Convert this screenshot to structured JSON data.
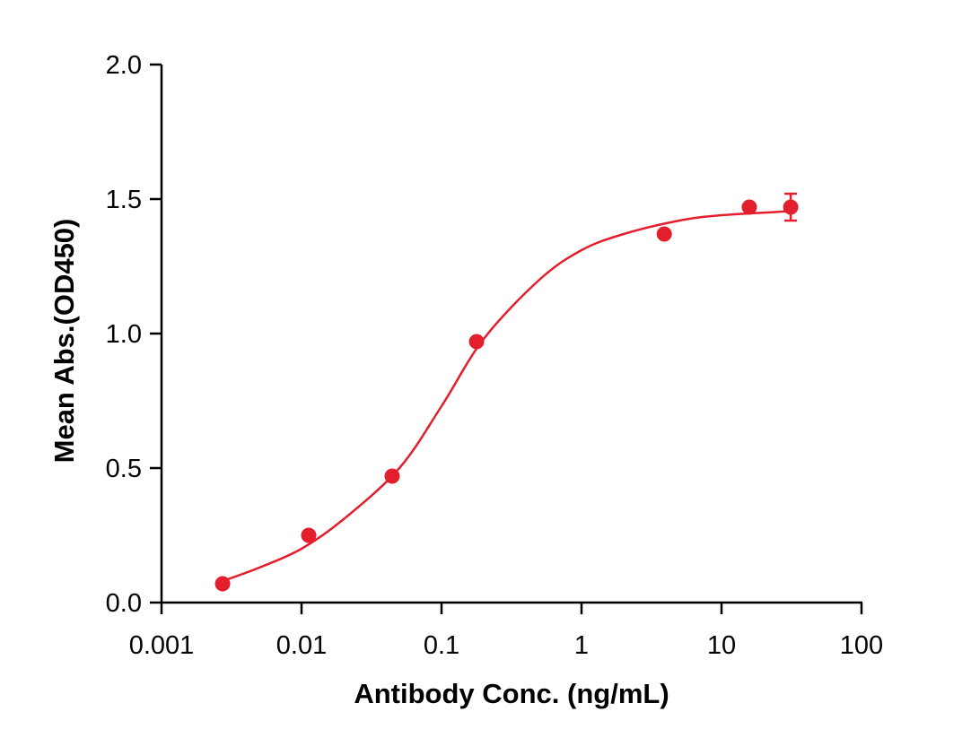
{
  "chart_data": {
    "type": "scatter",
    "xlabel": "Antibody Conc. (ng/mL)",
    "ylabel": "Mean Abs.(OD450)",
    "xscale": "log",
    "xlim": [
      0.001,
      100
    ],
    "xticks": [
      0.001,
      0.01,
      0.1,
      1,
      10,
      100
    ],
    "ylim": [
      0,
      2
    ],
    "yticks": [
      {
        "value": 0,
        "label": "0.0"
      },
      0.5,
      {
        "value": 1,
        "label": "1.0"
      },
      1.5,
      {
        "value": 2,
        "label": "2.0"
      }
    ],
    "series": [
      {
        "color": "#e31e2d",
        "x": [
          0.00273,
          0.01125,
          0.0444,
          0.178,
          3.9,
          15.8,
          31.2
        ],
        "values": [
          0.07,
          0.25,
          0.47,
          0.97,
          1.37,
          1.47,
          1.47
        ],
        "errors": [
          0,
          0,
          0,
          0,
          0,
          0,
          0.05
        ]
      }
    ],
    "fit": {
      "color": "#e31e2d",
      "x": [
        0.00273,
        0.005,
        0.01,
        0.02,
        0.05,
        0.1,
        0.2,
        0.5,
        1,
        2,
        5,
        10,
        31.2
      ],
      "values": [
        0.08,
        0.13,
        0.2,
        0.31,
        0.5,
        0.73,
        0.98,
        1.2,
        1.31,
        1.37,
        1.42,
        1.44,
        1.455
      ]
    }
  }
}
